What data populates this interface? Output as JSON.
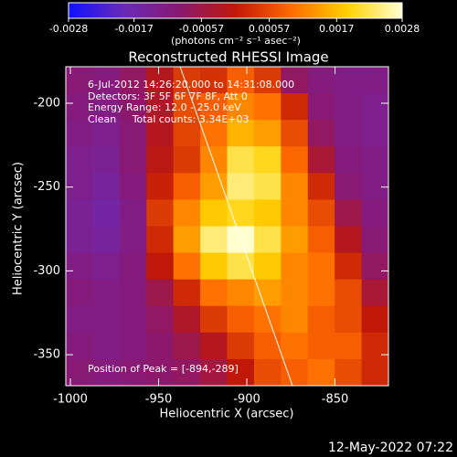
{
  "chart_data": {
    "type": "heatmap",
    "title": "Reconstructed RHESSI Image",
    "x_label": "Heliocentric X (arcsec)",
    "y_label": "Heliocentric Y (arcsec)",
    "annotations": [
      "6-Jul-2012 14:26:20.000 to 14:31:08.000",
      "Detectors: 3F 5F 6F 7F 8F, Att 0",
      "Energy Range: 12.0 - 25.0 keV",
      "Clean     Total counts: 3.34E+03"
    ],
    "peak_label": "Position of Peak = [-894,-289]",
    "footer": "12-May-2022 07:22",
    "xlim": [
      -1002.6,
      -819.7
    ],
    "ylim": [
      -368.5,
      -178.2
    ],
    "xticks": [
      -1000,
      -950,
      -900,
      -850
    ],
    "yticks": [
      -200,
      -250,
      -300,
      -350
    ],
    "colormap": [
      "#1010ff",
      "#6a2ab8",
      "#8a1870",
      "#c01808",
      "#ff6a00",
      "#ffd000",
      "#ffffd0"
    ],
    "colorbar": {
      "lim": [
        -0.0028,
        0.0028
      ],
      "ticks": [
        -0.0028,
        -0.0017,
        -0.00057,
        0.00057,
        0.0017,
        0.0028
      ],
      "label": "(photons cm⁻² s⁻¹ asec⁻²)"
    },
    "limb": {
      "x": [
        -937.8,
        -874.1
      ],
      "y": [
        -178.2,
        -368.5
      ]
    },
    "values": [
      [
        -0.001,
        -0.0011,
        -0.0008,
        -0.0002,
        0.0004,
        0.0003,
        0.0008,
        0.0004,
        -0.0008,
        -0.0011,
        -0.0012,
        -0.0012
      ],
      [
        -0.0011,
        -0.0012,
        -0.0009,
        -0.0003,
        0.0006,
        0.0008,
        0.0012,
        0.001,
        0.0002,
        -0.001,
        -0.0012,
        -0.0013
      ],
      [
        -0.0012,
        -0.0013,
        -0.001,
        -0.0002,
        0.0005,
        0.001,
        0.0016,
        0.0014,
        0.0006,
        -0.0008,
        -0.0012,
        -0.0013
      ],
      [
        -0.0013,
        -0.0014,
        -0.001,
        -0.0001,
        0.0004,
        0.0012,
        0.0022,
        0.002,
        0.0009,
        -0.0004,
        -0.0011,
        -0.0012
      ],
      [
        -0.0013,
        -0.0015,
        -0.0011,
        0.0001,
        0.0008,
        0.0014,
        0.0024,
        0.0022,
        0.0012,
        0.0002,
        -0.001,
        -0.0012
      ],
      [
        -0.0014,
        -0.0016,
        -0.0012,
        0.0004,
        0.0012,
        0.0018,
        0.002,
        0.0018,
        0.0012,
        0.0006,
        -0.0006,
        -0.0011
      ],
      [
        -0.0014,
        -0.0015,
        -0.0012,
        0.0002,
        0.0014,
        0.0024,
        0.0028,
        0.0022,
        0.0014,
        0.0008,
        -0.0002,
        -0.001
      ],
      [
        -0.0012,
        -0.0013,
        -0.0011,
        0.0,
        0.001,
        0.0018,
        0.0022,
        0.0018,
        0.0012,
        0.001,
        0.0002,
        -0.0008
      ],
      [
        -0.0011,
        -0.0012,
        -0.0011,
        -0.0006,
        0.0002,
        0.001,
        0.0012,
        0.0014,
        0.0012,
        0.001,
        0.0006,
        -0.0004
      ],
      [
        -0.0012,
        -0.0012,
        -0.0011,
        -0.0008,
        -0.0003,
        0.0004,
        0.0008,
        0.001,
        0.0012,
        0.0008,
        0.0006,
        0.0
      ],
      [
        -0.0011,
        -0.0012,
        -0.0011,
        -0.0009,
        -0.0006,
        -0.0002,
        0.0004,
        0.0008,
        0.001,
        0.0008,
        0.0008,
        0.0002
      ],
      [
        -0.001,
        -0.0011,
        -0.001,
        -0.0009,
        -0.0008,
        -0.0005,
        0.0,
        0.0006,
        0.0008,
        0.001,
        0.0006,
        0.0002
      ]
    ]
  }
}
